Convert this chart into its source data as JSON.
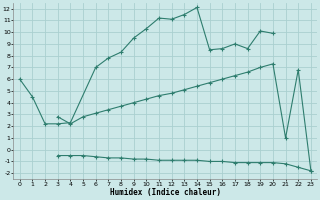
{
  "xlabel": "Humidex (Indice chaleur)",
  "bg_color": "#cce8e8",
  "grid_color": "#aad0d0",
  "line_color": "#2e7d6e",
  "xlim": [
    -0.5,
    23.5
  ],
  "ylim": [
    -2.5,
    12.5
  ],
  "xticks": [
    0,
    1,
    2,
    3,
    4,
    5,
    6,
    7,
    8,
    9,
    10,
    11,
    12,
    13,
    14,
    15,
    16,
    17,
    18,
    19,
    20,
    21,
    22,
    23
  ],
  "yticks": [
    -2,
    -1,
    0,
    1,
    2,
    3,
    4,
    5,
    6,
    7,
    8,
    9,
    10,
    11,
    12
  ],
  "series": [
    {
      "x": [
        0,
        1,
        2,
        3,
        4,
        6,
        7,
        8,
        9,
        10,
        11,
        12,
        13,
        14,
        15,
        16,
        17,
        18,
        19,
        20
      ],
      "y": [
        6.0,
        4.5,
        2.2,
        2.2,
        2.3,
        7.0,
        7.8,
        8.3,
        9.5,
        10.3,
        11.2,
        11.1,
        11.5,
        12.1,
        8.5,
        8.6,
        9.0,
        8.6,
        10.1,
        9.9
      ]
    },
    {
      "x": [
        3,
        4,
        5,
        6,
        7,
        8,
        9,
        10,
        11,
        12,
        13,
        14,
        15,
        16,
        17,
        18,
        19,
        20,
        21,
        22,
        23
      ],
      "y": [
        2.8,
        2.2,
        2.8,
        3.1,
        3.4,
        3.7,
        4.0,
        4.3,
        4.6,
        4.8,
        5.1,
        5.4,
        5.7,
        6.0,
        6.3,
        6.6,
        7.0,
        7.3,
        1.0,
        6.8,
        -1.8
      ]
    },
    {
      "x": [
        3,
        4,
        5,
        6,
        7,
        8,
        9,
        10,
        11,
        12,
        13,
        14,
        15,
        16,
        17,
        18,
        19,
        20,
        21,
        22,
        23
      ],
      "y": [
        -0.5,
        -0.5,
        -0.5,
        -0.6,
        -0.7,
        -0.7,
        -0.8,
        -0.8,
        -0.9,
        -0.9,
        -0.9,
        -0.9,
        -1.0,
        -1.0,
        -1.1,
        -1.1,
        -1.1,
        -1.1,
        -1.2,
        -1.5,
        -1.8
      ]
    }
  ]
}
